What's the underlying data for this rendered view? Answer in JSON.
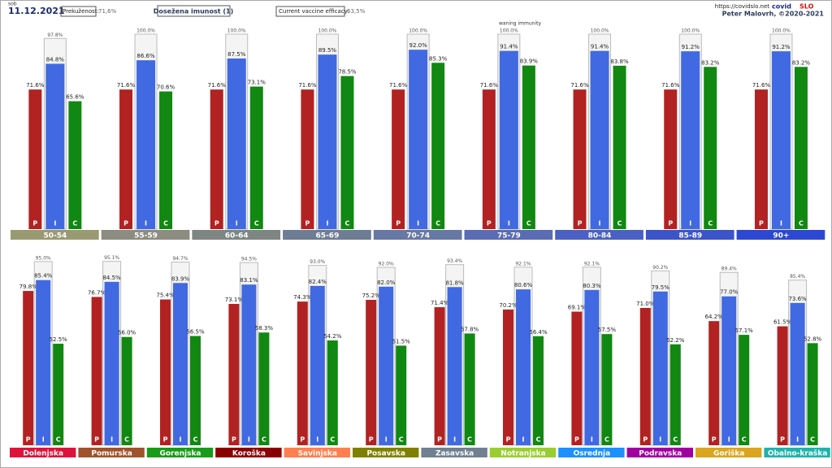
{
  "header": {
    "day": "sob",
    "date": "11.12.2021",
    "infection_label": "Prekuženost:",
    "infection_value": "71,6%",
    "title": "Dosežena imunost (1)",
    "efficacy_label": "Current vaccine efficacy:",
    "efficacy_value": "63,5%",
    "url": "https://covidslo.net",
    "brand_a": "covid",
    "brand_b": "SLO",
    "author": "Peter Malovrh, ©2020-2021"
  },
  "chart_data": [
    {
      "type": "bar",
      "annotation": "waning immunity",
      "ylim": [
        0,
        100
      ],
      "categories": [
        "50-54",
        "55-59",
        "60-64",
        "65-69",
        "70-74",
        "75-79",
        "80-84",
        "85-89",
        "90+"
      ],
      "category_colors": [
        "#9a9a72",
        "#8c8c80",
        "#7e8684",
        "#6e7c94",
        "#6878a4",
        "#5a6cb4",
        "#4a60c2",
        "#3c54ca",
        "#2c48d2"
      ],
      "series": [
        {
          "name": "P",
          "color": "#b22222",
          "values": [
            71.6,
            71.6,
            71.6,
            71.6,
            71.6,
            71.6,
            71.6,
            71.6,
            71.6
          ],
          "value_labels": [
            "71.6%",
            "71.6%",
            "71.6%",
            "71.6%",
            "71.6%",
            "71.6%",
            "71.6%",
            "71.6%",
            "71.6%"
          ]
        },
        {
          "name": "I",
          "color": "#4169e1",
          "values": [
            84.8,
            86.6,
            87.5,
            89.5,
            92.0,
            91.4,
            91.4,
            91.2,
            91.2
          ],
          "value_labels": [
            "84.8%",
            "86.6%",
            "87.5%",
            "89.5%",
            "92.0%",
            "91.4%",
            "91.4%",
            "91.2%",
            "91.2%"
          ]
        },
        {
          "name": "C",
          "color": "#118811",
          "values": [
            65.6,
            70.6,
            73.1,
            78.5,
            85.3,
            83.9,
            83.8,
            83.2,
            83.2
          ],
          "value_labels": [
            "65.6%",
            "70.6%",
            "73.1%",
            "78.5%",
            "85.3%",
            "83.9%",
            "83.8%",
            "83.2%",
            "83.2%"
          ]
        }
      ],
      "reference": {
        "color": "#f4f4f4",
        "values": [
          97.8,
          100.0,
          100.0,
          100.0,
          100.0,
          100.0,
          100.0,
          100.0,
          100.0
        ],
        "value_labels": [
          "97.8%",
          "100.0%",
          "100.0%",
          "100.0%",
          "100.0%",
          "100.0%",
          "100.0%",
          "100.0%",
          "100.0%"
        ]
      }
    },
    {
      "type": "bar",
      "ylim": [
        0,
        100
      ],
      "categories": [
        "Dolenjska",
        "Pomurska",
        "Gorenjska",
        "Koroška",
        "Savinjska",
        "Posavska",
        "Zasavska",
        "Notranjska",
        "Osrednja",
        "Podravska",
        "Goriška",
        "Obalno-kraška"
      ],
      "category_colors": [
        "#dc143c",
        "#a0522d",
        "#1a9a1a",
        "#8b0000",
        "#ff7f50",
        "#808000",
        "#708090",
        "#9acd32",
        "#1e90ff",
        "#a000a0",
        "#daa520",
        "#20b2aa"
      ],
      "series": [
        {
          "name": "P",
          "color": "#b22222",
          "values": [
            79.8,
            76.7,
            75.4,
            73.1,
            74.3,
            75.2,
            71.4,
            70.2,
            69.1,
            71.0,
            64.2,
            61.5
          ],
          "value_labels": [
            "79.8%",
            "76.7%",
            "75.4%",
            "73.1%",
            "74.3%",
            "75.2%",
            "71.4%",
            "70.2%",
            "69.1%",
            "71.0%",
            "64.2%",
            "61.5%"
          ]
        },
        {
          "name": "I",
          "color": "#4169e1",
          "values": [
            85.4,
            84.5,
            83.9,
            83.1,
            82.4,
            82.0,
            81.8,
            80.6,
            80.3,
            79.5,
            77.0,
            73.6
          ],
          "value_labels": [
            "85.4%",
            "84.5%",
            "83.9%",
            "83.1%",
            "82.4%",
            "82.0%",
            "81.8%",
            "80.6%",
            "80.3%",
            "79.5%",
            "77.0%",
            "73.6%"
          ]
        },
        {
          "name": "C",
          "color": "#118811",
          "values": [
            52.5,
            56.0,
            56.5,
            58.3,
            54.2,
            51.5,
            57.8,
            56.4,
            57.5,
            52.2,
            57.1,
            52.8
          ],
          "value_labels": [
            "52.5%",
            "56.0%",
            "56.5%",
            "58.3%",
            "54.2%",
            "51.5%",
            "57.8%",
            "56.4%",
            "57.5%",
            "52.2%",
            "57.1%",
            "52.8%"
          ]
        }
      ],
      "reference": {
        "color": "#f4f4f4",
        "values": [
          95.0,
          95.1,
          94.7,
          94.5,
          93.0,
          92.0,
          93.4,
          92.1,
          92.1,
          90.2,
          89.4,
          85.4
        ],
        "value_labels": [
          "95.0%",
          "95.1%",
          "94.7%",
          "94.5%",
          "93.0%",
          "92.0%",
          "93.4%",
          "92.1%",
          "92.1%",
          "90.2%",
          "89.4%",
          "85.4%"
        ]
      }
    }
  ]
}
